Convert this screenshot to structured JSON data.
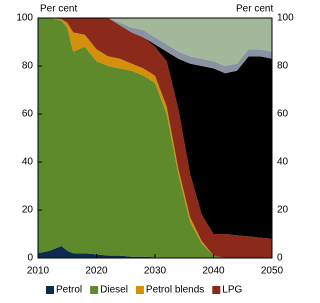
{
  "chart_data": {
    "type": "stacked_area",
    "ylabel": "Per cent",
    "y2label": "Per cent",
    "x": [
      2010,
      2012,
      2014,
      2015,
      2016,
      2018,
      2020,
      2022,
      2024,
      2026,
      2028,
      2030,
      2032,
      2034,
      2036,
      2038,
      2040,
      2042,
      2044,
      2046,
      2048,
      2050
    ],
    "xlim": [
      2010,
      2050
    ],
    "xticks": [
      2010,
      2020,
      2030,
      2040,
      2050
    ],
    "ylim": [
      0,
      100
    ],
    "yticks": [
      0,
      20,
      40,
      60,
      80,
      100
    ],
    "y2lim": [
      0,
      100
    ],
    "y2ticks": [
      0,
      20,
      40,
      60,
      80,
      100
    ],
    "legend": "bottom",
    "series": [
      {
        "name": "Petrol",
        "color": "#0d2b4e",
        "values": [
          2,
          3,
          5,
          3,
          2,
          2,
          1.5,
          1,
          1,
          0.5,
          0.5,
          0.3,
          0,
          0,
          0,
          0,
          0,
          0,
          0,
          0,
          0,
          0
        ]
      },
      {
        "name": "Diesel",
        "color": "#5f8a2c",
        "values": [
          98,
          97,
          94,
          93,
          84,
          86,
          80.5,
          79,
          78,
          77.5,
          75.5,
          72.7,
          60,
          35,
          15,
          6,
          1,
          0,
          0,
          0,
          0,
          0
        ]
      },
      {
        "name": "Petrol blends",
        "color": "#d4900a",
        "values": [
          0,
          0,
          0.5,
          2,
          8,
          5,
          5,
          4,
          4,
          3,
          3,
          3,
          3,
          2,
          2,
          1,
          0,
          0,
          0,
          0,
          0,
          0
        ]
      },
      {
        "name": "LPG",
        "color": "#8b2a1a",
        "values": [
          0,
          0,
          0.5,
          2,
          6,
          7,
          13,
          16,
          14,
          13,
          13,
          12,
          19,
          25,
          18,
          11,
          9,
          10,
          9.5,
          9,
          8.5,
          8
        ]
      },
      {
        "color": "#000000",
        "values": [
          0,
          0,
          0,
          0,
          0,
          0,
          0,
          0,
          0,
          0,
          0,
          1,
          4,
          21,
          46,
          62,
          69,
          67,
          68.5,
          75,
          75.5,
          75
        ]
      },
      {
        "color": "#8a93a3",
        "values": [
          0,
          0,
          0,
          0,
          0,
          0,
          0,
          0,
          1,
          2,
          3,
          3,
          3,
          3,
          3,
          3,
          3,
          3,
          3,
          3,
          3,
          3
        ]
      },
      {
        "color": "#a3b89a",
        "values": [
          0,
          0,
          0,
          0,
          0,
          0,
          0,
          0,
          2,
          4,
          5,
          8,
          11,
          14,
          16,
          17,
          18,
          20,
          19,
          13,
          13,
          14
        ]
      }
    ]
  }
}
